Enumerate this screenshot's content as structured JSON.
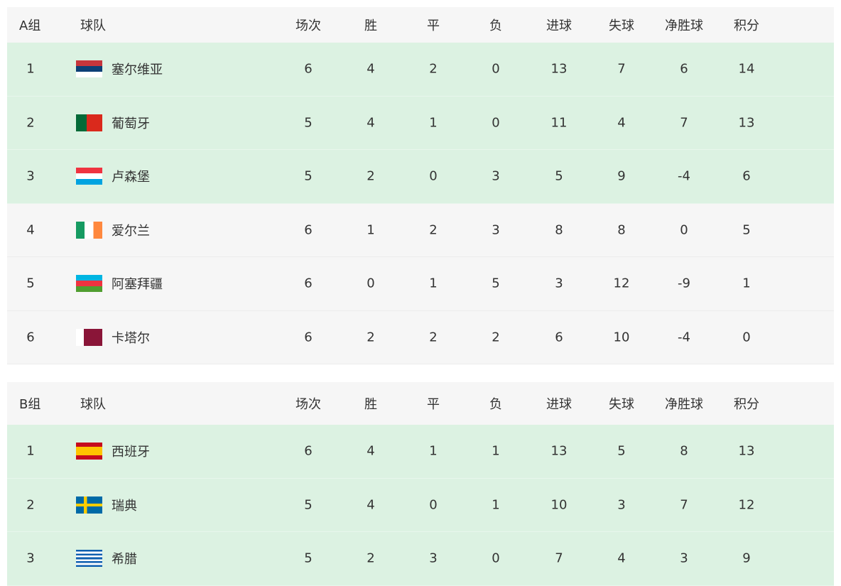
{
  "columns": [
    "球队",
    "场次",
    "胜",
    "平",
    "负",
    "进球",
    "失球",
    "净胜球",
    "积分"
  ],
  "groups": [
    {
      "name": "A组",
      "rows": [
        {
          "rank": "1",
          "flag": "SRB",
          "team": "塞尔维亚",
          "p": "6",
          "w": "4",
          "d": "2",
          "l": "0",
          "gf": "13",
          "ga": "7",
          "gd": "6",
          "pts": "14",
          "highlight": "green"
        },
        {
          "rank": "2",
          "flag": "POR",
          "team": "葡萄牙",
          "p": "5",
          "w": "4",
          "d": "1",
          "l": "0",
          "gf": "11",
          "ga": "4",
          "gd": "7",
          "pts": "13",
          "highlight": "green"
        },
        {
          "rank": "3",
          "flag": "LUX",
          "team": "卢森堡",
          "p": "5",
          "w": "2",
          "d": "0",
          "l": "3",
          "gf": "5",
          "ga": "9",
          "gd": "-4",
          "pts": "6",
          "highlight": "green"
        },
        {
          "rank": "4",
          "flag": "IRL",
          "team": "爱尔兰",
          "p": "6",
          "w": "1",
          "d": "2",
          "l": "3",
          "gf": "8",
          "ga": "8",
          "gd": "0",
          "pts": "5",
          "highlight": "gray"
        },
        {
          "rank": "5",
          "flag": "AZE",
          "team": "阿塞拜疆",
          "p": "6",
          "w": "0",
          "d": "1",
          "l": "5",
          "gf": "3",
          "ga": "12",
          "gd": "-9",
          "pts": "1",
          "highlight": "gray"
        },
        {
          "rank": "6",
          "flag": "QAT",
          "team": "卡塔尔",
          "p": "6",
          "w": "2",
          "d": "2",
          "l": "2",
          "gf": "6",
          "ga": "10",
          "gd": "-4",
          "pts": "0",
          "highlight": "gray"
        }
      ]
    },
    {
      "name": "B组",
      "rows": [
        {
          "rank": "1",
          "flag": "ESP",
          "team": "西班牙",
          "p": "6",
          "w": "4",
          "d": "1",
          "l": "1",
          "gf": "13",
          "ga": "5",
          "gd": "8",
          "pts": "13",
          "highlight": "green"
        },
        {
          "rank": "2",
          "flag": "SWE",
          "team": "瑞典",
          "p": "5",
          "w": "4",
          "d": "0",
          "l": "1",
          "gf": "10",
          "ga": "3",
          "gd": "7",
          "pts": "12",
          "highlight": "green"
        },
        {
          "rank": "3",
          "flag": "GRE",
          "team": "希腊",
          "p": "5",
          "w": "2",
          "d": "3",
          "l": "0",
          "gf": "7",
          "ga": "4",
          "gd": "3",
          "pts": "9",
          "highlight": "green"
        }
      ]
    }
  ],
  "colors": {
    "green_row": "#dcf2e2",
    "gray_row": "#f6f6f6"
  }
}
